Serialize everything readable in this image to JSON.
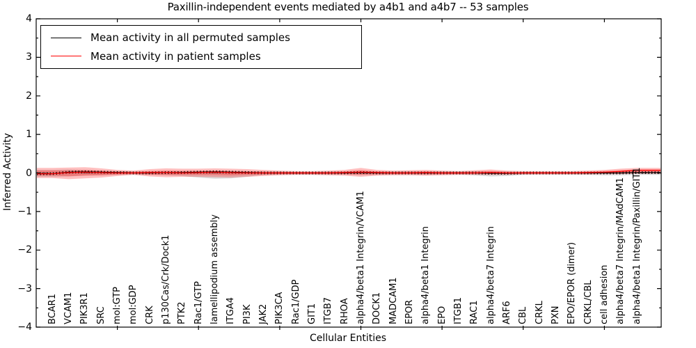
{
  "title": "Paxillin-independent events mediated by a4b1 and a4b7 -- 53 samples",
  "legend": {
    "entries": [
      {
        "label": "Mean activity in all permuted samples",
        "color": "#000000"
      },
      {
        "label": "Mean activity in patient samples",
        "color": "#ff0000"
      }
    ]
  },
  "chart_data": {
    "type": "line",
    "title": "Paxillin-independent events mediated by a4b1 and a4b7 -- 53 samples",
    "xlabel": "Cellular Entities",
    "ylabel": "Inferred Activity",
    "ylim": [
      -4,
      4
    ],
    "yticks": [
      -4,
      -3,
      -2,
      -1,
      0,
      1,
      2,
      3,
      4
    ],
    "ytick_minor_step": 0.5,
    "xtick_major_every": 5,
    "grid": false,
    "legend_position": "upper left",
    "zero_line": {
      "y": 0,
      "style": "dotted",
      "color": "#000000"
    },
    "categories": [
      "BCAR1",
      "VCAM1",
      "PIK3R1",
      "SRC",
      "mol:GTP",
      "mol:GDP",
      "CRK",
      "p130Cas/Crk/Dock1",
      "PTK2",
      "Rac1/GTP",
      "lamellipodium assembly",
      "ITGA4",
      "PI3K",
      "JAK2",
      "PIK3CA",
      "Rac1/GDP",
      "GIT1",
      "ITGB7",
      "RHOA",
      "alpha4/beta1 Integrin/VCAM1",
      "DOCK1",
      "MADCAM1",
      "EPOR",
      "alpha4/beta1 Integrin",
      "EPO",
      "ITGB1",
      "RAC1",
      "alpha4/beta7 Integrin",
      "ARF6",
      "CBL",
      "CRKL",
      "PXN",
      "EPO/EPOR (dimer)",
      "CRKL/CBL",
      "cell adhesion",
      "alpha4/beta7 Integrin/MAdCAM1",
      "alpha4/beta1 Integrin/Paxillin/GIT1"
    ],
    "series": [
      {
        "name": "Mean activity in all permuted samples",
        "color": "#000000",
        "style": "solid-with-tick-markers",
        "values": [
          -0.02,
          0.02,
          0.03,
          0.02,
          0.01,
          0.0,
          0.0,
          0.01,
          0.01,
          0.02,
          0.03,
          0.02,
          0.01,
          0.0,
          0.0,
          0.0,
          0.0,
          0.0,
          0.0,
          0.01,
          0.0,
          0.0,
          0.0,
          0.0,
          0.0,
          0.0,
          0.0,
          -0.01,
          -0.01,
          0.0,
          0.0,
          0.0,
          0.0,
          0.0,
          0.0,
          0.0,
          0.01
        ]
      },
      {
        "name": "Mean activity in patient samples",
        "color": "#ff0000",
        "style": "solid",
        "values": [
          -0.02,
          0.01,
          0.02,
          0.01,
          0.0,
          0.0,
          0.01,
          0.01,
          0.0,
          0.01,
          0.02,
          0.01,
          0.0,
          0.0,
          0.0,
          0.0,
          0.0,
          0.0,
          0.01,
          0.02,
          0.01,
          0.0,
          0.0,
          0.01,
          0.0,
          0.0,
          0.0,
          0.01,
          0.0,
          0.0,
          0.0,
          0.0,
          0.0,
          0.01,
          0.02,
          0.04,
          0.07
        ]
      }
    ],
    "bands": [
      {
        "name": "permuted-samples-ci",
        "color": "#888888",
        "opacity": 0.3,
        "low": [
          -0.1,
          -0.09,
          -0.07,
          -0.06,
          -0.05,
          -0.04,
          -0.05,
          -0.06,
          -0.08,
          -0.12,
          -0.15,
          -0.14,
          -0.1,
          -0.05,
          -0.04,
          -0.04,
          -0.04,
          -0.04,
          -0.04,
          -0.06,
          -0.05,
          -0.04,
          -0.04,
          -0.05,
          -0.04,
          -0.04,
          -0.06,
          -0.09,
          -0.08,
          -0.05,
          -0.04,
          -0.04,
          -0.04,
          -0.05,
          -0.06,
          -0.06,
          -0.05
        ],
        "high": [
          0.08,
          0.09,
          0.08,
          0.06,
          0.05,
          0.04,
          0.04,
          0.05,
          0.05,
          0.05,
          0.05,
          0.05,
          0.04,
          0.04,
          0.04,
          0.03,
          0.03,
          0.04,
          0.04,
          0.06,
          0.04,
          0.04,
          0.04,
          0.04,
          0.04,
          0.04,
          0.04,
          0.04,
          0.04,
          0.03,
          0.03,
          0.03,
          0.03,
          0.03,
          0.03,
          0.04,
          0.05
        ]
      },
      {
        "name": "patient-samples-ci",
        "color": "#ff0000",
        "opacity": 0.25,
        "low": [
          -0.13,
          -0.16,
          -0.14,
          -0.12,
          -0.08,
          -0.05,
          -0.09,
          -0.11,
          -0.1,
          -0.1,
          -0.11,
          -0.12,
          -0.1,
          -0.08,
          -0.06,
          -0.05,
          -0.05,
          -0.06,
          -0.07,
          -0.1,
          -0.07,
          -0.06,
          -0.06,
          -0.07,
          -0.06,
          -0.05,
          -0.05,
          -0.05,
          -0.05,
          -0.04,
          -0.04,
          -0.04,
          -0.04,
          -0.04,
          -0.03,
          -0.03,
          -0.02
        ],
        "high": [
          0.13,
          0.14,
          0.15,
          0.12,
          0.08,
          0.06,
          0.1,
          0.12,
          0.11,
          0.11,
          0.12,
          0.11,
          0.1,
          0.08,
          0.06,
          0.05,
          0.05,
          0.06,
          0.08,
          0.13,
          0.08,
          0.06,
          0.07,
          0.08,
          0.06,
          0.05,
          0.07,
          0.09,
          0.06,
          0.05,
          0.05,
          0.05,
          0.05,
          0.06,
          0.08,
          0.11,
          0.13
        ]
      }
    ]
  }
}
